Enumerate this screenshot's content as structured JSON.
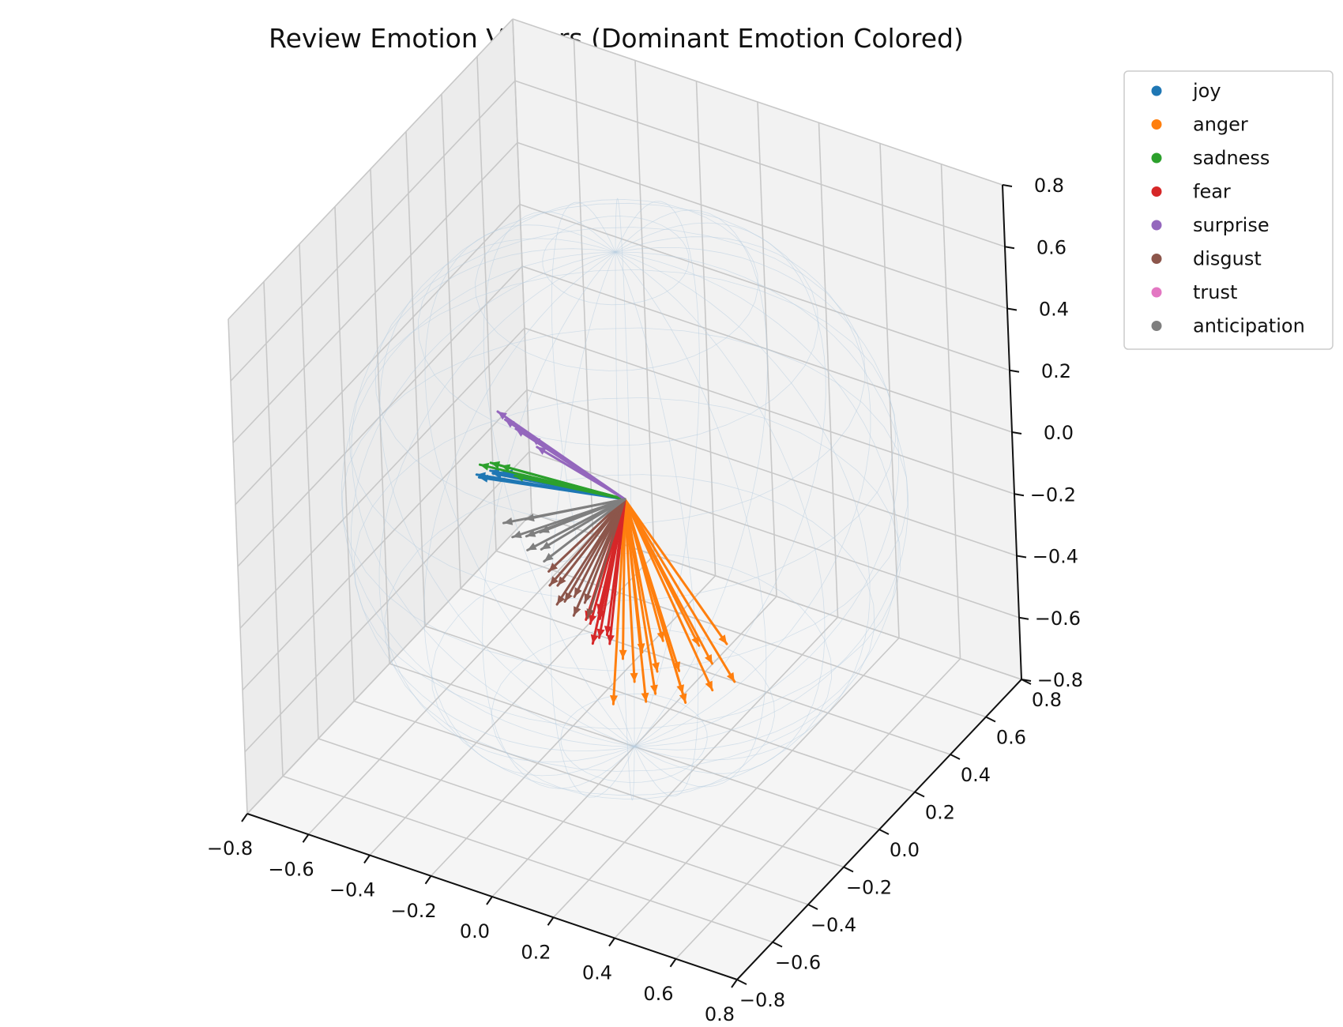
{
  "chart_data": {
    "type": "3d-quiver",
    "title": "Review Emotion Vectors (Dominant Emotion Colored)",
    "xlabel": "",
    "ylabel": "",
    "zlabel": "",
    "xlim": [
      -0.8,
      0.8
    ],
    "ylim": [
      -0.8,
      0.8
    ],
    "zlim": [
      -0.8,
      0.8
    ],
    "x_ticks": [
      "−0.8",
      "−0.6",
      "−0.4",
      "−0.2",
      "0.0",
      "0.2",
      "0.4",
      "0.6",
      "0.8"
    ],
    "y_ticks": [
      "−0.8",
      "−0.6",
      "−0.4",
      "−0.2",
      "0.0",
      "0.2",
      "0.4",
      "0.6",
      "0.8"
    ],
    "z_ticks": [
      "−0.8",
      "−0.6",
      "−0.4",
      "−0.2",
      "0.0",
      "0.2",
      "0.4",
      "0.6",
      "0.8"
    ],
    "grid": true,
    "reference_sphere": {
      "radius": 0.8,
      "color": "#b8cde0"
    },
    "legend_position": "outside-top-right",
    "origin": [
      0,
      0,
      0
    ],
    "series": [
      {
        "name": "joy",
        "color": "#1f77b4",
        "vectors": [
          [
            -0.5,
            0.02,
            -0.1
          ],
          [
            -0.48,
            0.0,
            -0.09
          ],
          [
            -0.46,
            0.03,
            -0.08
          ],
          [
            -0.44,
            0.01,
            -0.07
          ],
          [
            -0.41,
            0.02,
            -0.06
          ]
        ]
      },
      {
        "name": "anger",
        "color": "#ff7f0e",
        "vectors": [
          [
            0.15,
            -0.35,
            -0.4
          ],
          [
            0.45,
            -0.18,
            -0.33
          ],
          [
            0.32,
            -0.25,
            -0.37
          ],
          [
            0.28,
            -0.2,
            -0.34
          ],
          [
            0.22,
            -0.22,
            -0.35
          ],
          [
            0.36,
            -0.15,
            -0.32
          ],
          [
            0.18,
            -0.28,
            -0.36
          ],
          [
            0.4,
            -0.22,
            -0.35
          ],
          [
            0.26,
            -0.3,
            -0.36
          ],
          [
            0.3,
            -0.12,
            -0.3
          ],
          [
            0.12,
            -0.24,
            -0.33
          ],
          [
            0.2,
            -0.15,
            -0.3
          ],
          [
            0.34,
            -0.27,
            -0.38
          ],
          [
            0.24,
            -0.32,
            -0.38
          ],
          [
            0.38,
            -0.1,
            -0.28
          ],
          [
            0.16,
            -0.2,
            -0.32
          ]
        ]
      },
      {
        "name": "sadness",
        "color": "#2ca02c",
        "vectors": [
          [
            -0.5,
            0.04,
            -0.08
          ],
          [
            -0.47,
            0.05,
            -0.07
          ],
          [
            -0.43,
            0.04,
            -0.06
          ],
          [
            -0.38,
            0.03,
            -0.07
          ]
        ]
      },
      {
        "name": "fear",
        "color": "#d62728",
        "vectors": [
          [
            -0.02,
            -0.18,
            -0.3
          ],
          [
            0.02,
            -0.2,
            -0.32
          ],
          [
            0.0,
            -0.16,
            -0.29
          ],
          [
            0.04,
            -0.19,
            -0.31
          ],
          [
            -0.04,
            -0.17,
            -0.3
          ],
          [
            0.06,
            -0.21,
            -0.32
          ],
          [
            0.01,
            -0.22,
            -0.33
          ],
          [
            -0.01,
            -0.15,
            -0.28
          ]
        ]
      },
      {
        "name": "surprise",
        "color": "#9467bd",
        "vectors": [
          [
            -0.52,
            0.18,
            0.0
          ],
          [
            -0.49,
            0.17,
            -0.01
          ],
          [
            -0.45,
            0.16,
            -0.02
          ],
          [
            -0.4,
            0.16,
            -0.03
          ],
          [
            -0.37,
            0.14,
            -0.04
          ]
        ]
      },
      {
        "name": "disgust",
        "color": "#8c564b",
        "vectors": [
          [
            -0.16,
            -0.12,
            -0.26
          ],
          [
            -0.12,
            -0.15,
            -0.28
          ],
          [
            -0.08,
            -0.17,
            -0.3
          ],
          [
            -0.2,
            -0.1,
            -0.24
          ],
          [
            -0.1,
            -0.13,
            -0.27
          ],
          [
            -0.14,
            -0.16,
            -0.29
          ],
          [
            -0.06,
            -0.14,
            -0.27
          ],
          [
            -0.18,
            -0.13,
            -0.26
          ],
          [
            -0.04,
            -0.16,
            -0.3
          ]
        ]
      },
      {
        "name": "trust",
        "color": "#e377c2",
        "vectors": []
      },
      {
        "name": "anticipation",
        "color": "#7f7f7f",
        "vectors": [
          [
            -0.38,
            -0.04,
            -0.18
          ],
          [
            -0.34,
            -0.06,
            -0.2
          ],
          [
            -0.3,
            -0.05,
            -0.19
          ],
          [
            -0.28,
            -0.08,
            -0.21
          ],
          [
            -0.24,
            -0.07,
            -0.2
          ],
          [
            -0.32,
            -0.02,
            -0.16
          ],
          [
            -0.26,
            -0.04,
            -0.17
          ],
          [
            -0.22,
            -0.09,
            -0.22
          ]
        ]
      }
    ]
  }
}
